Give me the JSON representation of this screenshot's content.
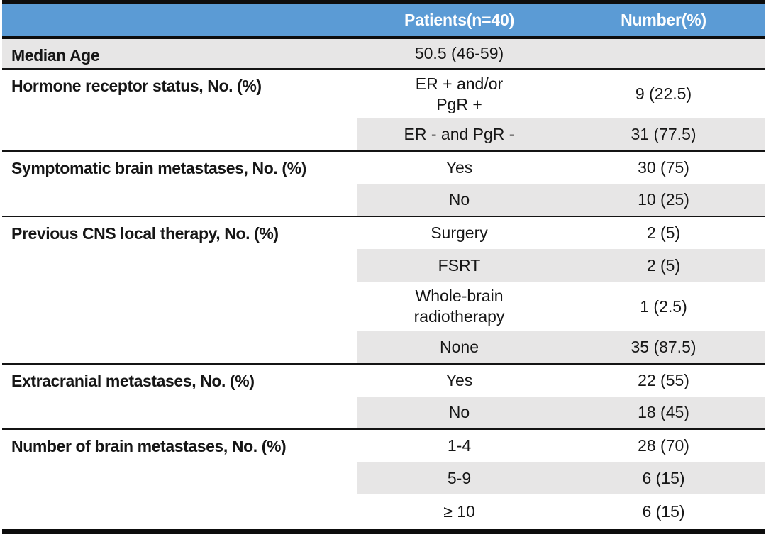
{
  "colors": {
    "header_bg": "#5b9bd5",
    "header_text": "#ffffff",
    "row_shade": "#e7e6e6",
    "rule": "#0d0d0d"
  },
  "table": {
    "header": {
      "col1": "",
      "col2": "Patients(n=40)",
      "col3": "Number(%)"
    },
    "sections": [
      {
        "label": "Median Age",
        "rows": [
          {
            "value": "50.5 (46-59)",
            "number": ""
          }
        ]
      },
      {
        "label": "Hormone receptor status, No. (%)",
        "rows": [
          {
            "value": "ER + and/or\nPgR +",
            "number": "9 (22.5)"
          },
          {
            "value": "ER - and PgR -",
            "number": "31 (77.5)"
          }
        ]
      },
      {
        "label": "Symptomatic brain metastases, No. (%)",
        "rows": [
          {
            "value": "Yes",
            "number": "30 (75)"
          },
          {
            "value": "No",
            "number": "10 (25)"
          }
        ]
      },
      {
        "label": "Previous CNS local therapy, No. (%)",
        "rows": [
          {
            "value": "Surgery",
            "number": "2 (5)"
          },
          {
            "value": "FSRT",
            "number": "2 (5)"
          },
          {
            "value": "Whole-brain\nradiotherapy",
            "number": "1 (2.5)"
          },
          {
            "value": "None",
            "number": "35 (87.5)"
          }
        ]
      },
      {
        "label": "Extracranial metastases, No. (%)",
        "rows": [
          {
            "value": "Yes",
            "number": "22 (55)"
          },
          {
            "value": "No",
            "number": "18 (45)"
          }
        ]
      },
      {
        "label": "Number of brain metastases, No. (%)",
        "rows": [
          {
            "value": "1-4",
            "number": "28 (70)"
          },
          {
            "value": "5-9",
            "number": "6 (15)"
          },
          {
            "value": "≥ 10",
            "number": "6 (15)"
          }
        ]
      }
    ]
  }
}
